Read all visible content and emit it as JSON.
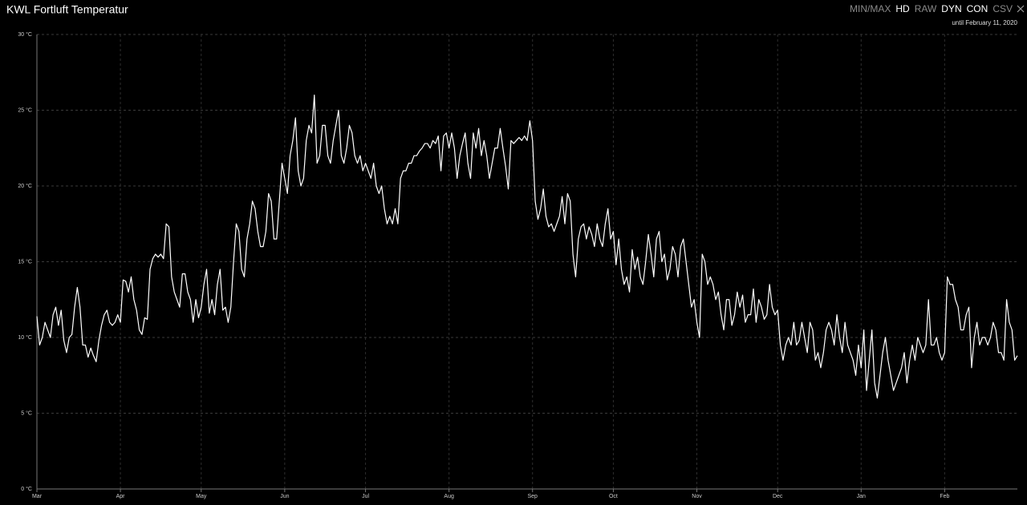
{
  "chart_data": {
    "type": "line",
    "title": "KWL Fortluft Temperatur",
    "subtitle": "until February 11, 2020",
    "toolbar": [
      {
        "label": "MIN/MAX",
        "active": false
      },
      {
        "label": "HD",
        "active": true
      },
      {
        "label": "RAW",
        "active": false
      },
      {
        "label": "DYN",
        "active": true
      },
      {
        "label": "CON",
        "active": true
      },
      {
        "label": "CSV",
        "active": false
      }
    ],
    "color": "#ffffff",
    "grid": true,
    "xlim": [
      0,
      364
    ],
    "xticks": [
      {
        "value": 0,
        "label": "Mar"
      },
      {
        "value": 31,
        "label": "Apr"
      },
      {
        "value": 61,
        "label": "May"
      },
      {
        "value": 92,
        "label": "Jun"
      },
      {
        "value": 122,
        "label": "Jul"
      },
      {
        "value": 153,
        "label": "Aug"
      },
      {
        "value": 184,
        "label": "Sep"
      },
      {
        "value": 214,
        "label": "Oct"
      },
      {
        "value": 245,
        "label": "Nov"
      },
      {
        "value": 275,
        "label": "Dec"
      },
      {
        "value": 306,
        "label": "Jan"
      },
      {
        "value": 337,
        "label": "Feb"
      }
    ],
    "ylim": [
      0,
      30
    ],
    "yticks": [
      {
        "value": 0,
        "label": "0 °C"
      },
      {
        "value": 5,
        "label": "5 °C"
      },
      {
        "value": 10,
        "label": "10 °C"
      },
      {
        "value": 15,
        "label": "15 °C"
      },
      {
        "value": 20,
        "label": "20 °C"
      },
      {
        "value": 25,
        "label": "25 °C"
      },
      {
        "value": 30,
        "label": "30 °C"
      }
    ],
    "values": [
      11.4,
      9.5,
      10,
      11,
      10.5,
      10,
      11.5,
      12,
      10.8,
      11.8,
      9.8,
      9,
      10,
      10.2,
      12,
      13.3,
      12,
      9.5,
      9.5,
      8.7,
      9.3,
      8.8,
      8.4,
      9.8,
      10.8,
      11.5,
      11.8,
      11,
      10.8,
      11,
      11.5,
      11,
      13.8,
      13.7,
      13,
      14,
      12.5,
      11.8,
      10.5,
      10.2,
      11.3,
      11.2,
      14.5,
      15.2,
      15.5,
      15.3,
      15.5,
      15.2,
      17.5,
      17.3,
      14,
      13,
      12.5,
      12,
      14.2,
      14.2,
      13,
      12.5,
      11,
      12.5,
      11.3,
      12,
      13.5,
      14.5,
      11.6,
      12.5,
      11.5,
      13.5,
      14.5,
      11.8,
      12,
      11,
      12,
      15,
      17.5,
      17,
      14.5,
      14,
      16.5,
      17.5,
      19,
      18.5,
      17,
      16,
      16,
      17,
      19.5,
      19,
      16.5,
      16.5,
      19,
      21.5,
      20.5,
      19.5,
      22,
      23,
      24.5,
      21,
      20,
      20.5,
      23,
      24,
      23.5,
      26,
      21.5,
      22,
      24,
      24,
      22,
      21.5,
      23,
      24,
      25,
      22,
      21.5,
      22.5,
      24,
      23.5,
      22,
      21.5,
      22,
      21,
      21.5,
      21,
      20.5,
      21.5,
      20,
      19.5,
      20,
      18.5,
      17.5,
      18,
      17.5,
      18.5,
      17.5,
      20.5,
      21,
      21,
      21.5,
      21.5,
      22,
      22,
      22.3,
      22.5,
      22.8,
      22.8,
      22.5,
      23,
      22.8,
      23.3,
      21,
      23.3,
      23.5,
      22.5,
      23.5,
      22.5,
      20.5,
      22,
      22.8,
      23.5,
      21.5,
      20.5,
      23.5,
      22.5,
      23.8,
      22,
      23,
      22,
      20.5,
      21.5,
      22.5,
      22.5,
      23.8,
      22.5,
      21.3,
      19.8,
      23,
      22.8,
      23,
      23.2,
      23,
      23.3,
      23,
      24.3,
      23,
      19,
      17.8,
      18.5,
      19.8,
      18,
      17.3,
      17.5,
      17,
      17.5,
      18,
      19.3,
      17.5,
      19.5,
      19,
      15.5,
      14,
      16.5,
      17.3,
      17.5,
      16.5,
      17.3,
      16.8,
      16,
      17.5,
      16.5,
      16,
      17.5,
      18.5,
      16.5,
      17,
      14.8,
      16.5,
      14.5,
      13.5,
      14,
      13,
      15.8,
      14.5,
      15.3,
      14,
      13.5,
      15,
      16.8,
      15.5,
      14,
      16.5,
      17,
      15,
      15.5,
      13.8,
      14.5,
      16,
      15.5,
      14,
      16,
      16.5,
      15,
      13.5,
      12,
      12.5,
      11,
      10,
      15.5,
      15,
      13.5,
      14,
      13.5,
      12.5,
      13,
      11.5,
      10.5,
      12.5,
      12.5,
      10.8,
      11.5,
      13,
      12,
      12.8,
      11,
      11.5,
      11.5,
      13.2,
      11,
      12.5,
      12,
      11.2,
      11.5,
      13.5,
      12,
      11.5,
      11.8,
      9.5,
      8.5,
      9.5,
      10,
      9.5,
      11,
      9.5,
      9.8,
      11,
      10,
      9,
      11,
      10.5,
      8.5,
      9,
      8,
      9,
      10.5,
      11,
      10.5,
      9.5,
      11.5,
      10,
      9,
      11,
      9.5,
      9,
      8.5,
      7.5,
      9.5,
      8,
      10.5,
      6.5,
      8.5,
      10.5,
      7,
      6,
      7.5,
      9,
      10,
      8.5,
      7.5,
      6.5,
      7,
      7.5,
      8,
      9,
      7,
      8.5,
      9.5,
      8.5,
      10,
      9.5,
      9,
      9.5,
      12.5,
      9.5,
      9.5,
      10,
      9,
      8.5,
      9,
      14,
      13.5,
      13.5,
      12.5,
      12,
      10.5,
      10.5,
      11.5,
      12,
      8,
      10,
      11,
      9.5,
      10,
      10,
      9.5,
      10,
      11,
      10.5,
      9,
      9,
      8.5,
      12.5,
      11,
      10.5,
      8.5,
      8.8
    ]
  }
}
